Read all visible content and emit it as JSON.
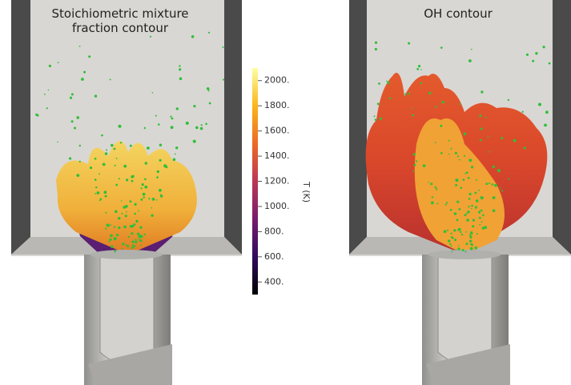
{
  "panels": [
    {
      "title_lines": [
        "Stoichiometric mixture",
        "fraction contour"
      ]
    },
    {
      "title_lines": [
        "OH contour"
      ]
    }
  ],
  "colorbar": {
    "label": "T (K)",
    "colormap": "inferno",
    "range": [
      300,
      2100
    ],
    "ticks": [
      {
        "value": 2000,
        "label": "2000."
      },
      {
        "value": 1800,
        "label": "1800."
      },
      {
        "value": 1600,
        "label": "1600."
      },
      {
        "value": 1400,
        "label": "1400."
      },
      {
        "value": 1200,
        "label": "1200."
      },
      {
        "value": 1000,
        "label": "1000."
      },
      {
        "value": 800,
        "label": "800."
      },
      {
        "value": 600,
        "label": "600."
      },
      {
        "value": 400,
        "label": "400."
      }
    ]
  }
}
